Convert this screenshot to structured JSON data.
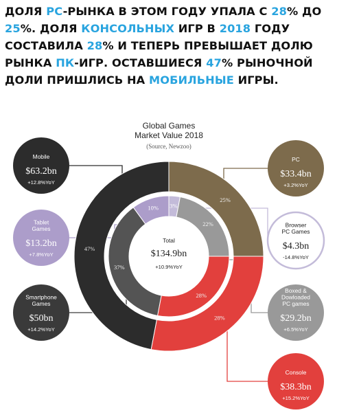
{
  "headline": {
    "parts": [
      {
        "text": "Доля ",
        "hl": false
      },
      {
        "text": "PC",
        "hl": true
      },
      {
        "text": "-рынка в этом году упала с ",
        "hl": false
      },
      {
        "text": "28",
        "hl": true
      },
      {
        "text": "% до ",
        "hl": false
      },
      {
        "text": "25",
        "hl": true
      },
      {
        "text": "%. Доля ",
        "hl": false
      },
      {
        "text": "консольных",
        "hl": true
      },
      {
        "text": " игр в ",
        "hl": false
      },
      {
        "text": "2018",
        "hl": true
      },
      {
        "text": " году составила ",
        "hl": false
      },
      {
        "text": "28",
        "hl": true
      },
      {
        "text": "% и теперь превышает долю рынка ",
        "hl": false
      },
      {
        "text": "ПК",
        "hl": true
      },
      {
        "text": "-игр. Оставшиеся ",
        "hl": false
      },
      {
        "text": "47",
        "hl": true
      },
      {
        "text": "% рыночной доли пришлись на ",
        "hl": false
      },
      {
        "text": "мобильные",
        "hl": true
      },
      {
        "text": " игры.",
        "hl": false
      }
    ]
  },
  "colors": {
    "accent": "#29a4df",
    "mobile": "#2c2c2c",
    "mobile_inner": "#545454",
    "tablet": "#ac9dca",
    "pc": "#7d6b4c",
    "browser": "#c3bbd9",
    "boxed": "#999999",
    "console": "#e2403d"
  },
  "chart_data": {
    "type": "pie",
    "title": "Global Games\nMarket Value 2018",
    "source": "(Source, Newzoo)",
    "center": {
      "label": "Total",
      "value": "$134.9bn",
      "yoy": "+10.9%YoY"
    },
    "outer_ring": [
      {
        "name": "PC",
        "share": 25,
        "label": "25%",
        "value": "$33.4bn",
        "yoy": "+3.2%YoY",
        "color": "#7d6b4c"
      },
      {
        "name": "Console",
        "share": 28,
        "label": "28%",
        "value": "$38.3bn",
        "yoy": "+15.2%YoY",
        "color": "#e2403d"
      },
      {
        "name": "Mobile",
        "share": 47,
        "label": "47%",
        "value": "$63.2bn",
        "yoy": "+12.8%YoY",
        "color": "#2c2c2c"
      }
    ],
    "inner_ring": [
      {
        "name": "Browser PC Games",
        "share": 3,
        "label": "3%",
        "value": "$4.3bn",
        "yoy": "-14.8%YoY",
        "color": "#c3bbd9"
      },
      {
        "name": "Boxed & Dowloaded PC games",
        "share": 22,
        "label": "22%",
        "value": "$29.2bn",
        "yoy": "+6.5%YoY",
        "color": "#999999"
      },
      {
        "name": "Console",
        "share": 28,
        "label": "28%",
        "value": "$38.3bn",
        "yoy": "+15.2%YoY",
        "color": "#e2403d"
      },
      {
        "name": "Smartphone Games",
        "share": 37,
        "label": "37%",
        "value": "$50bn",
        "yoy": "+14.2%YoY",
        "color": "#545454"
      },
      {
        "name": "Tablet Games",
        "share": 10,
        "label": "10%",
        "value": "$13.2bn",
        "yoy": "+7.8%YoY",
        "color": "#ac9dca"
      }
    ],
    "callouts": [
      {
        "id": "mobile",
        "label": "Mobile",
        "value": "$63.2bn",
        "yoy": "+12.8%YoY",
        "color": "#2c2c2c",
        "text_color": "#ffffff"
      },
      {
        "id": "tablet",
        "label": "Tablet\nGames",
        "value": "$13.2bn",
        "yoy": "+7.8%YoY",
        "color": "#ac9dca",
        "text_color": "#ffffff"
      },
      {
        "id": "smartphone",
        "label": "Smartphone\nGames",
        "value": "$50bn",
        "yoy": "+14.2%YoY",
        "color": "#3a3a3a",
        "text_color": "#ffffff"
      },
      {
        "id": "pc",
        "label": "PC",
        "value": "$33.4bn",
        "yoy": "+3.2%YoY",
        "color": "#7d6b4c",
        "text_color": "#ffffff"
      },
      {
        "id": "browser",
        "label": "Browser\nPC Games",
        "value": "$4.3bn",
        "yoy": "-14.8%YoY",
        "color": "#ffffff",
        "text_color": "#222222",
        "border": "#c3bbd9"
      },
      {
        "id": "boxed",
        "label": "Boxed &\nDowloaded\nPC games",
        "value": "$29.2bn",
        "yoy": "+6.5%YoY",
        "color": "#999999",
        "text_color": "#ffffff"
      },
      {
        "id": "console",
        "label": "Console",
        "value": "$38.3bn",
        "yoy": "+15.2%YoY",
        "color": "#e2403d",
        "text_color": "#ffffff"
      }
    ]
  }
}
